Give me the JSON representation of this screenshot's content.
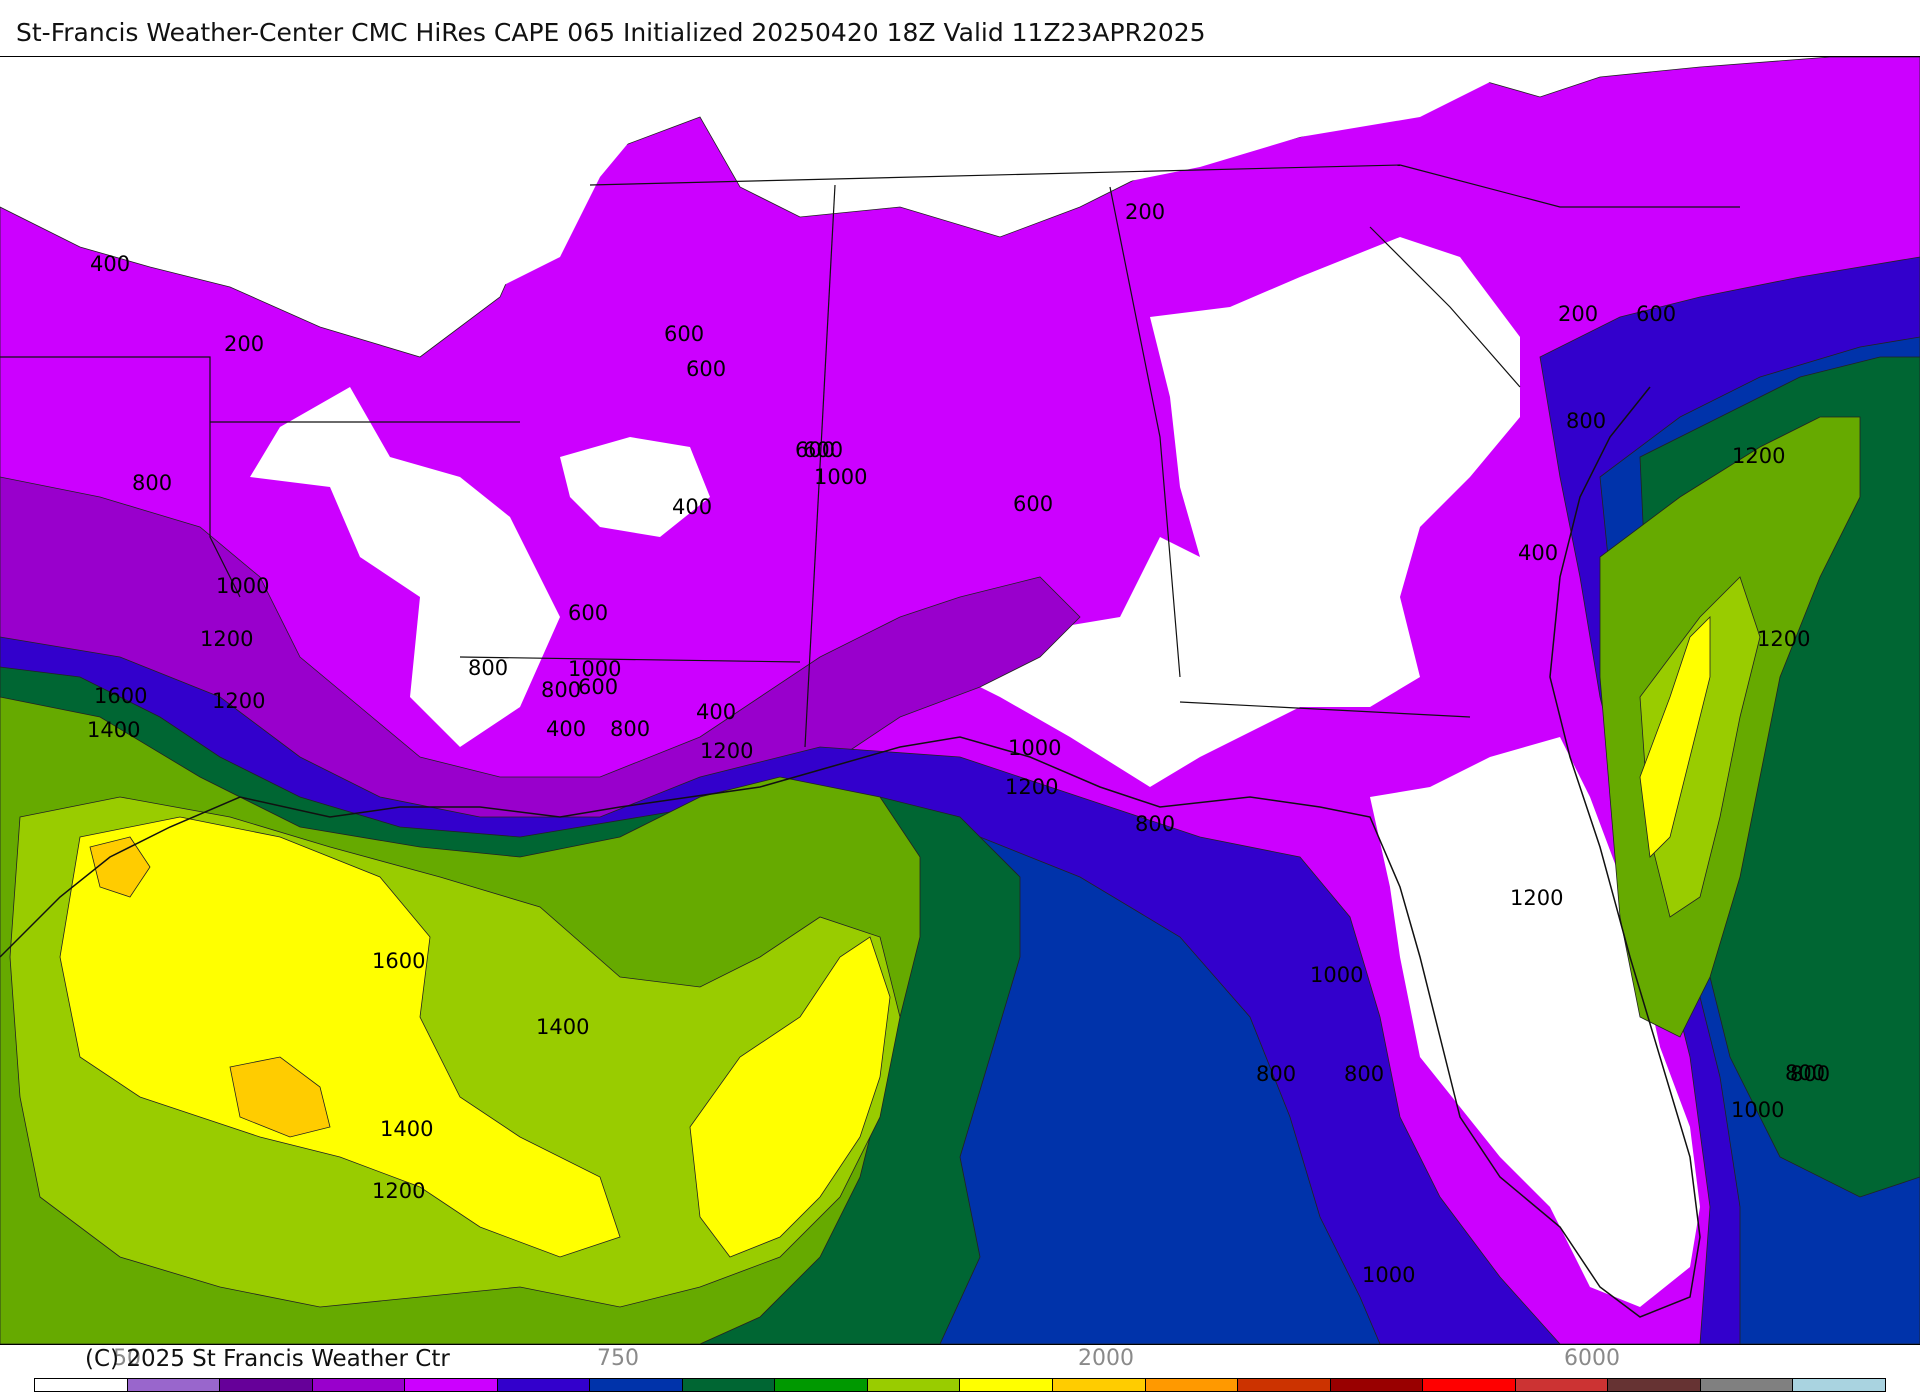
{
  "title": "St-Francis Weather-Center CMC HiRes CAPE  065 Initialized 20250420 18Z Valid 11Z23APR2025",
  "copyright": "(C) 2025 St Francis Weather Ctr",
  "colorbar": {
    "colors": [
      "#ffffff",
      "#9966cc",
      "#660099",
      "#9900cc",
      "#cc00ff",
      "#3300cc",
      "#0033aa",
      "#006633",
      "#009900",
      "#99cc00",
      "#ffff00",
      "#ffcc00",
      "#ff9900",
      "#cc3300",
      "#990000",
      "#ff0000",
      "#cc3333",
      "#663333",
      "#808080",
      "#a9d3e0"
    ],
    "tick_labels": [
      "50",
      "750",
      "2000",
      "6000"
    ]
  },
  "map": {
    "colors": {
      "land_empty": "#ffffff",
      "c200": "#cc00ff",
      "c400": "#9900cc",
      "c600": "#3300cc",
      "c800": "#0033aa",
      "c1000": "#006633",
      "c1200": "#66aa00",
      "c1400": "#99cc00",
      "c1600": "#ffff00",
      "c1800": "#ffcc00"
    },
    "contour_labels": [
      {
        "text": "400"
      },
      {
        "text": "200"
      },
      {
        "text": "600"
      },
      {
        "text": "800"
      },
      {
        "text": "1000"
      },
      {
        "text": "1200"
      },
      {
        "text": "1600"
      },
      {
        "text": "1400"
      },
      {
        "text": "1200"
      },
      {
        "text": "1600"
      },
      {
        "text": "1400"
      },
      {
        "text": "1400"
      },
      {
        "text": "1200"
      },
      {
        "text": "600"
      },
      {
        "text": "400"
      },
      {
        "text": "600"
      },
      {
        "text": "1000"
      },
      {
        "text": "600"
      },
      {
        "text": "800"
      },
      {
        "text": "800"
      },
      {
        "text": "400"
      },
      {
        "text": "800"
      },
      {
        "text": "400"
      },
      {
        "text": "600"
      },
      {
        "text": "1000"
      },
      {
        "text": "1200"
      },
      {
        "text": "600"
      },
      {
        "text": "1200"
      },
      {
        "text": "1000"
      },
      {
        "text": "600"
      },
      {
        "text": "800"
      },
      {
        "text": "1000"
      },
      {
        "text": "1200"
      },
      {
        "text": "200"
      },
      {
        "text": "200"
      },
      {
        "text": "600"
      },
      {
        "text": "800"
      },
      {
        "text": "1200"
      },
      {
        "text": "400"
      },
      {
        "text": "1200"
      },
      {
        "text": "1000"
      },
      {
        "text": "800"
      },
      {
        "text": "800"
      },
      {
        "text": "800"
      },
      {
        "text": "1000"
      },
      {
        "text": "800"
      }
    ]
  }
}
